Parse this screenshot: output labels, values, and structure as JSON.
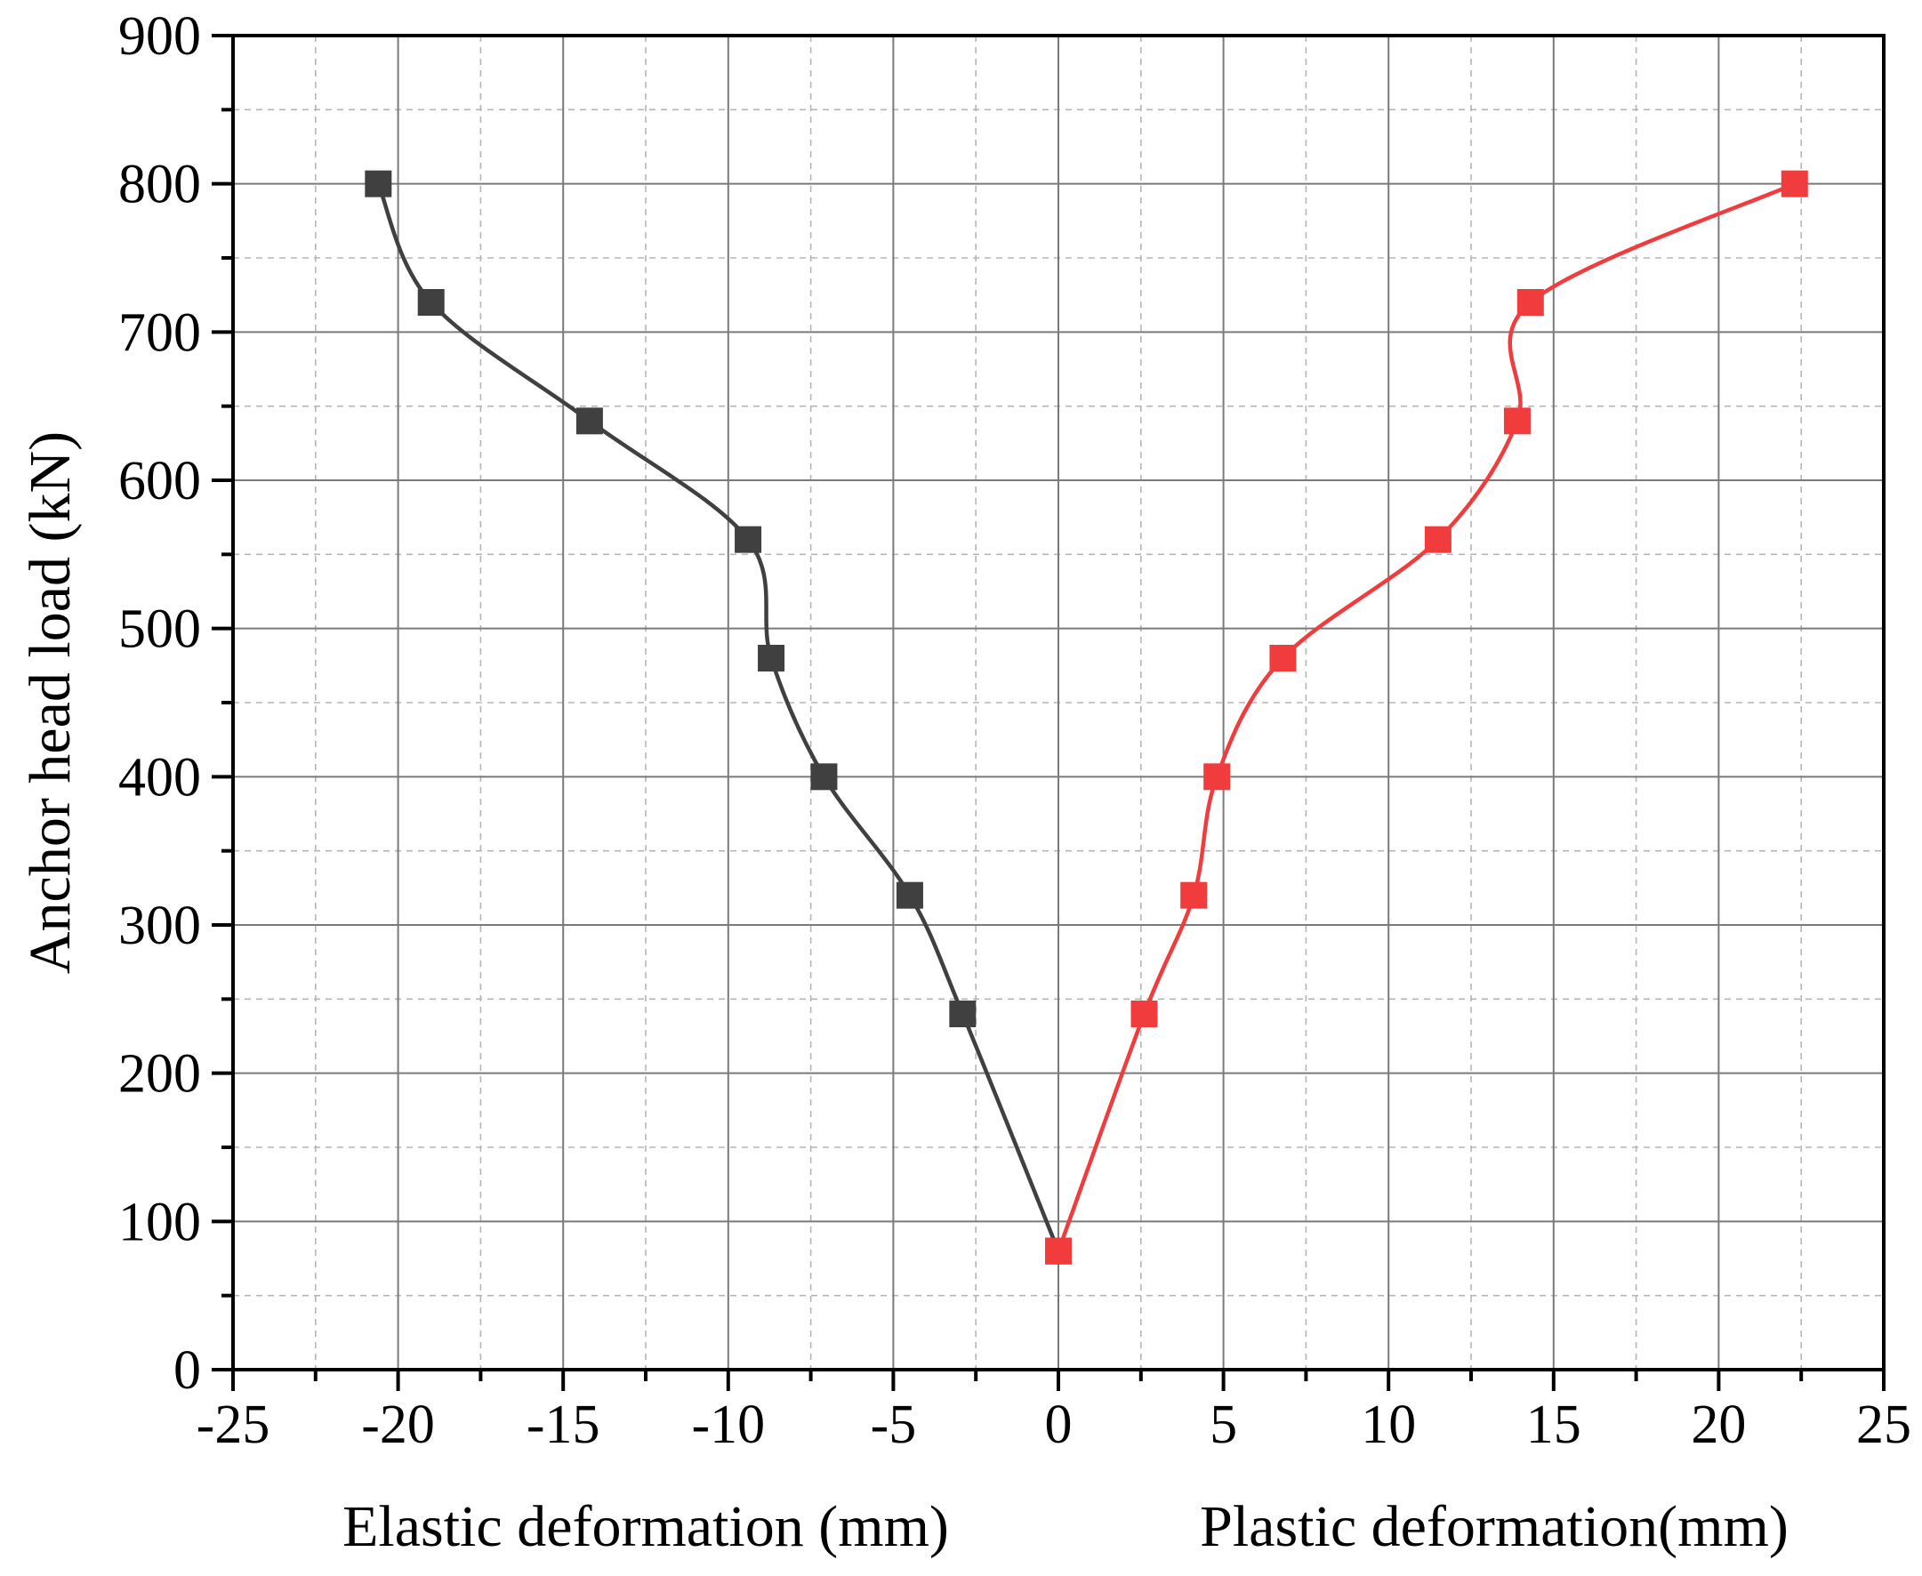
{
  "chart_data": {
    "type": "line",
    "title": "",
    "ylabel": "Anchor head load (kN)",
    "xlabel_left": "Elastic deformation (mm)",
    "xlabel_right": "Plastic deformation(mm)",
    "xlim": [
      -25,
      25
    ],
    "ylim": [
      0,
      900
    ],
    "x_major_step": 5,
    "x_minor_step": 2.5,
    "y_major_step": 100,
    "y_minor_step": 50,
    "grid": true,
    "x_ticks": [
      "-25",
      "-20",
      "-15",
      "-10",
      "-5",
      "0",
      "5",
      "10",
      "15",
      "20",
      "25"
    ],
    "y_ticks": [
      "0",
      "100",
      "200",
      "300",
      "400",
      "500",
      "600",
      "700",
      "800",
      "900"
    ],
    "series": [
      {
        "name": "Elastic deformation",
        "color": "#404040",
        "marker": "square",
        "x": [
          0,
          -2.9,
          -4.5,
          -7.1,
          -8.7,
          -9.4,
          -14.2,
          -19.0,
          -20.6
        ],
        "y": [
          80,
          240,
          320,
          400,
          480,
          560,
          640,
          720,
          800
        ]
      },
      {
        "name": "Plastic deformation",
        "color": "#f03c3c",
        "marker": "square",
        "x": [
          0,
          2.6,
          4.1,
          4.8,
          6.8,
          11.5,
          13.9,
          14.3,
          22.3
        ],
        "y": [
          80,
          240,
          320,
          400,
          480,
          560,
          640,
          720,
          800
        ]
      }
    ]
  }
}
